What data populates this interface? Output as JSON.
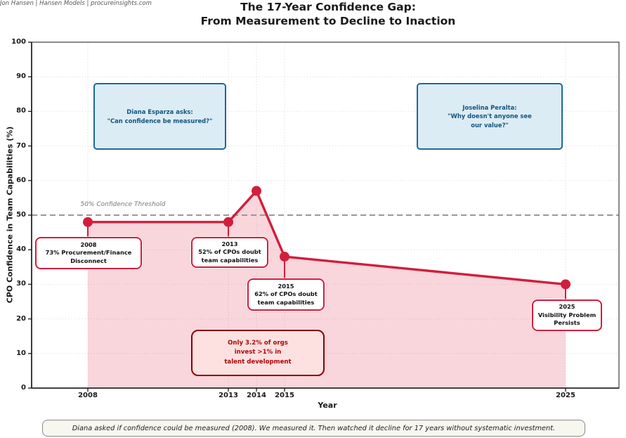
{
  "header": {
    "title_line1": "The 17-Year Confidence Gap:",
    "title_line2": "From Measurement to Decline to Inaction",
    "credit": "Jon Hansen | Hansen Models | procureinsights.com"
  },
  "chart_data": {
    "type": "line",
    "title": "The 17-Year Confidence Gap: From Measurement to Decline to Inaction",
    "xlabel": "Year",
    "ylabel": "CPO Confidence in Team Capabilities (%)",
    "series": [
      {
        "name": "CPO Confidence",
        "x": [
          2008,
          2013,
          2014,
          2015,
          2025
        ],
        "values": [
          48,
          48,
          57,
          38,
          30
        ]
      }
    ],
    "x_ticks": [
      2008,
      2013,
      2014,
      2015,
      2025
    ],
    "y_ticks": [
      0,
      10,
      20,
      30,
      40,
      50,
      60,
      70,
      80,
      90,
      100
    ],
    "xlim": [
      2006,
      2026.9
    ],
    "ylim": [
      0,
      100
    ],
    "grid": "dotted",
    "legend": "none",
    "area_fill_under_line": true,
    "threshold": {
      "value": 50,
      "label": "50% Confidence Threshold"
    },
    "colors": {
      "line": "#d21e3c",
      "area": "rgba(220,20,60,0.18)",
      "threshold": "#999999",
      "grid": "rgba(170,170,170,0.45)"
    }
  },
  "annotations": {
    "a2008": {
      "year": 2008,
      "lines": [
        "2008",
        "73% Procurement/Finance",
        "Disconnect"
      ]
    },
    "a2013": {
      "year": 2013,
      "lines": [
        "2013",
        "52% of CPOs doubt",
        "team capabilities"
      ]
    },
    "a2015": {
      "year": 2015,
      "lines": [
        "2015",
        "62% of CPOs doubt",
        "team capabilities"
      ]
    },
    "a2025": {
      "year": 2025,
      "lines": [
        "2025",
        "Visibility Problem",
        "Persists"
      ]
    },
    "invest": {
      "lines": [
        "Only 3.2% of orgs",
        "invest >1% in",
        "talent development"
      ]
    },
    "quote_left": {
      "lines": [
        "Diana Esparza asks:",
        "\"Can confidence be measured?\""
      ]
    },
    "quote_right": {
      "lines": [
        "Joselina Peralta:",
        "\"Why doesn't anyone see",
        "our value?\""
      ]
    }
  },
  "caption": "Diana asked if confidence could be measured (2008). We measured it. Then watched it decline for 17 years without systematic investment."
}
